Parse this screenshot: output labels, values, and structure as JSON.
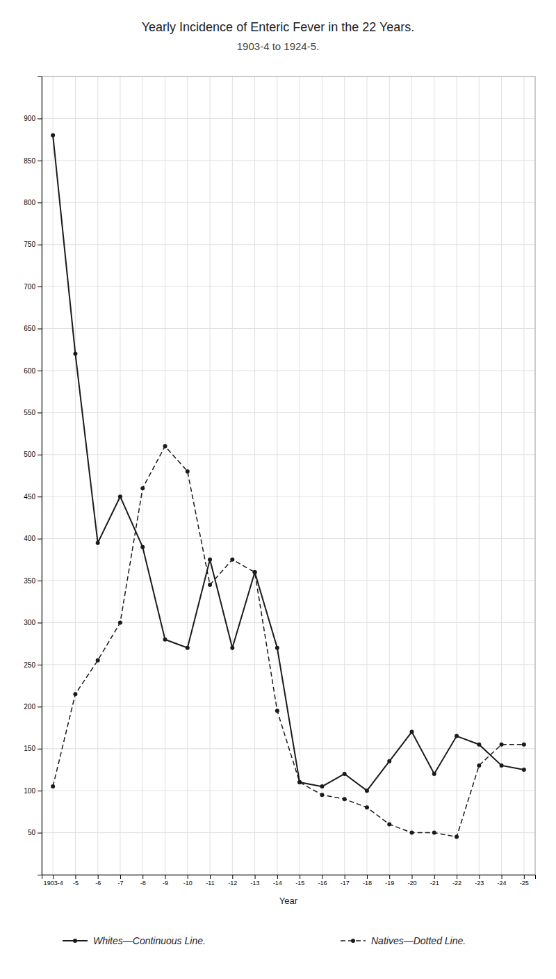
{
  "chart_data": {
    "type": "line",
    "title": "Yearly Incidence of Enteric Fever in the 22 Years.",
    "subtitle": "1903-4 to 1924-5.",
    "x_label": "Year",
    "categories": [
      "1903-4",
      "-5",
      "-6",
      "-7",
      "-8",
      "-9",
      "-10",
      "-11",
      "-12",
      "-13",
      "-14",
      "-15",
      "-16",
      "-17",
      "-18",
      "-19",
      "-20",
      "-21",
      "-22",
      "-23",
      "-24",
      "-25"
    ],
    "series": [
      {
        "name": "Whites—Continuous Line.",
        "color": "#1a1a1a",
        "line_style": "solid",
        "marker": "o",
        "values": [
          880,
          620,
          395,
          450,
          390,
          280,
          270,
          375,
          270,
          360,
          270,
          110,
          105,
          120,
          100,
          135,
          170,
          120,
          165,
          155,
          130,
          125
        ]
      },
      {
        "name": "Natives—Dotted Line.",
        "color": "#1a1a1a",
        "line_style": "dashed",
        "marker": "o",
        "values": [
          105,
          215,
          255,
          300,
          460,
          510,
          480,
          345,
          375,
          360,
          195,
          110,
          95,
          90,
          80,
          60,
          50,
          50,
          45,
          130,
          155,
          155
        ]
      }
    ],
    "ylim": [
      0,
      950
    ],
    "yticks": [
      50,
      100,
      150,
      200,
      250,
      300,
      350,
      400,
      450,
      500,
      550,
      600,
      650,
      700,
      750,
      800,
      850,
      900
    ],
    "grid": true
  }
}
